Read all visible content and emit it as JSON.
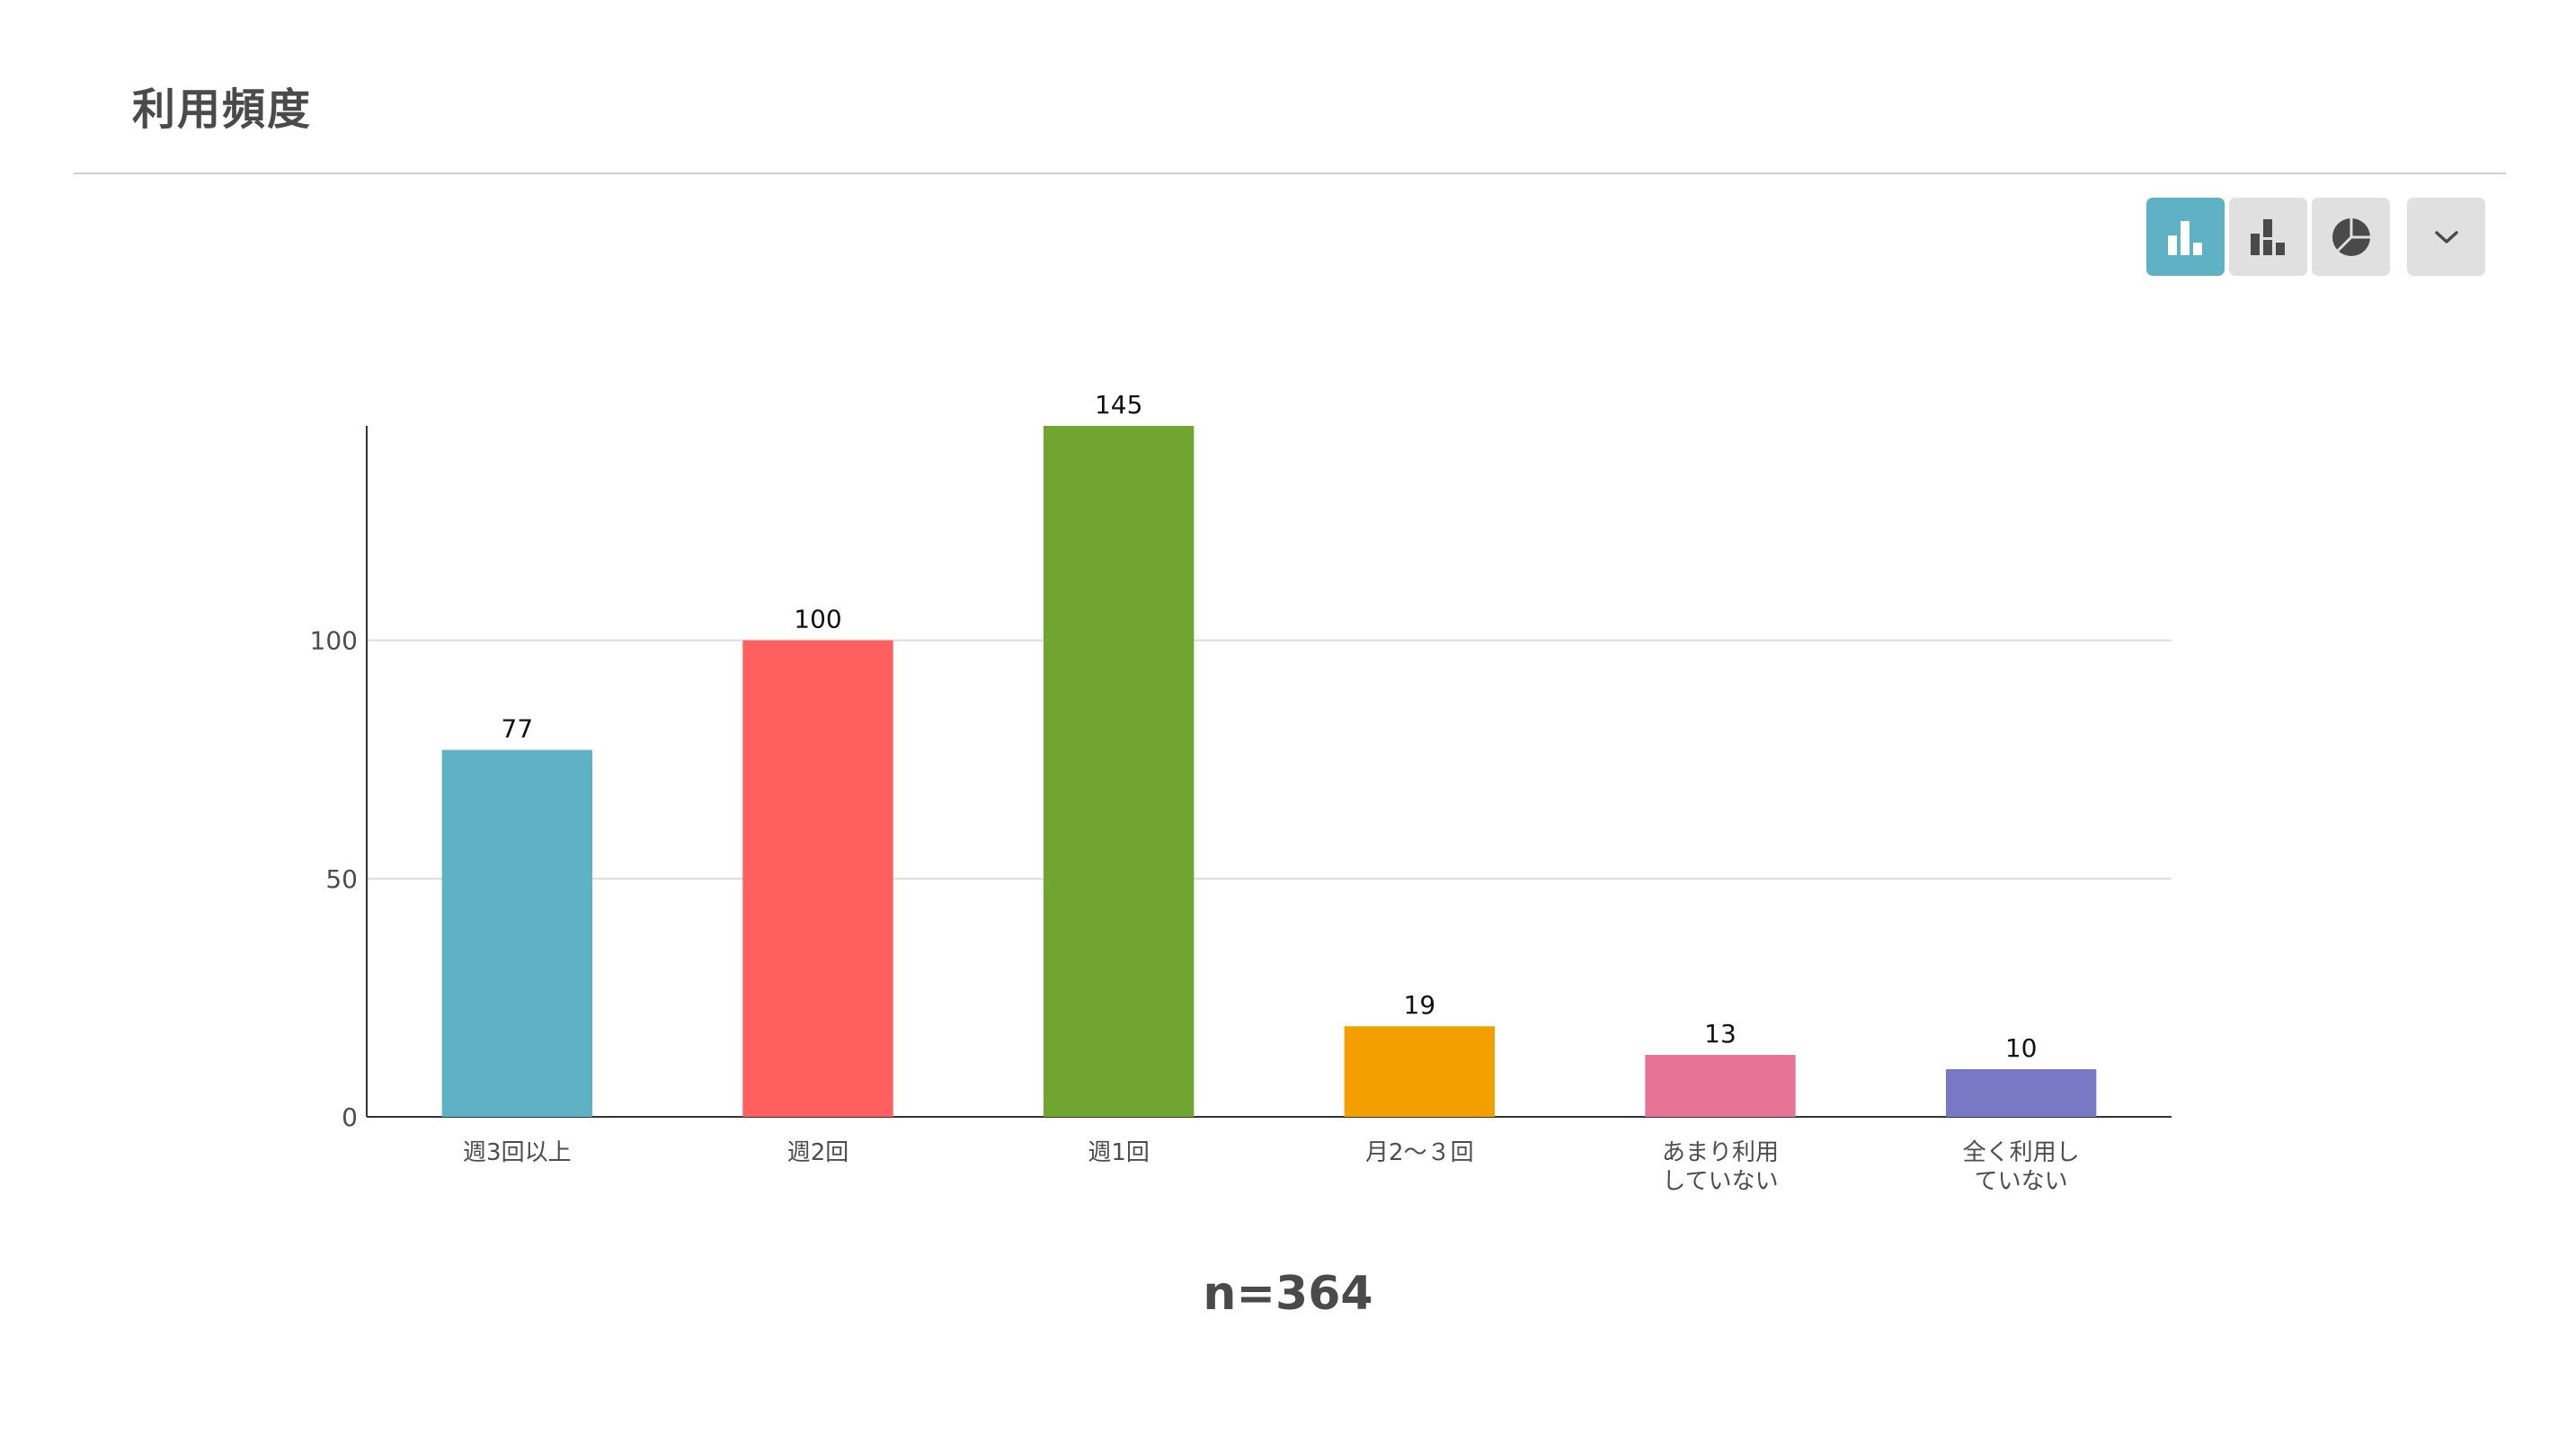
{
  "header": {
    "title": "利用頻度"
  },
  "toolbar": {
    "buttons": [
      {
        "icon": "vertical-bar-chart-icon",
        "active": true
      },
      {
        "icon": "stacked-bar-chart-icon",
        "active": false
      },
      {
        "icon": "pie-chart-icon",
        "active": false
      },
      {
        "icon": "chevron-down-icon",
        "active": false
      }
    ],
    "active_color": "#5fb1c5",
    "inactive_color": "#e0e0e0"
  },
  "chart_data": {
    "type": "bar",
    "categories": [
      "週3回以上",
      "週2回",
      "週1回",
      "月2～３回",
      "あまり利用\nしていない",
      "全く利用し\nていない"
    ],
    "values": [
      77,
      100,
      145,
      19,
      13,
      10
    ],
    "colors": [
      "#5fb1c5",
      "#fe5f5f",
      "#70a531",
      "#f49f00",
      "#e87399",
      "#7879c5"
    ],
    "yticks": [
      0,
      50,
      100
    ],
    "ylim": [
      0,
      145
    ],
    "grid": true,
    "legend": "none",
    "data_labels": true
  },
  "footer": {
    "n_label": "n=364"
  }
}
